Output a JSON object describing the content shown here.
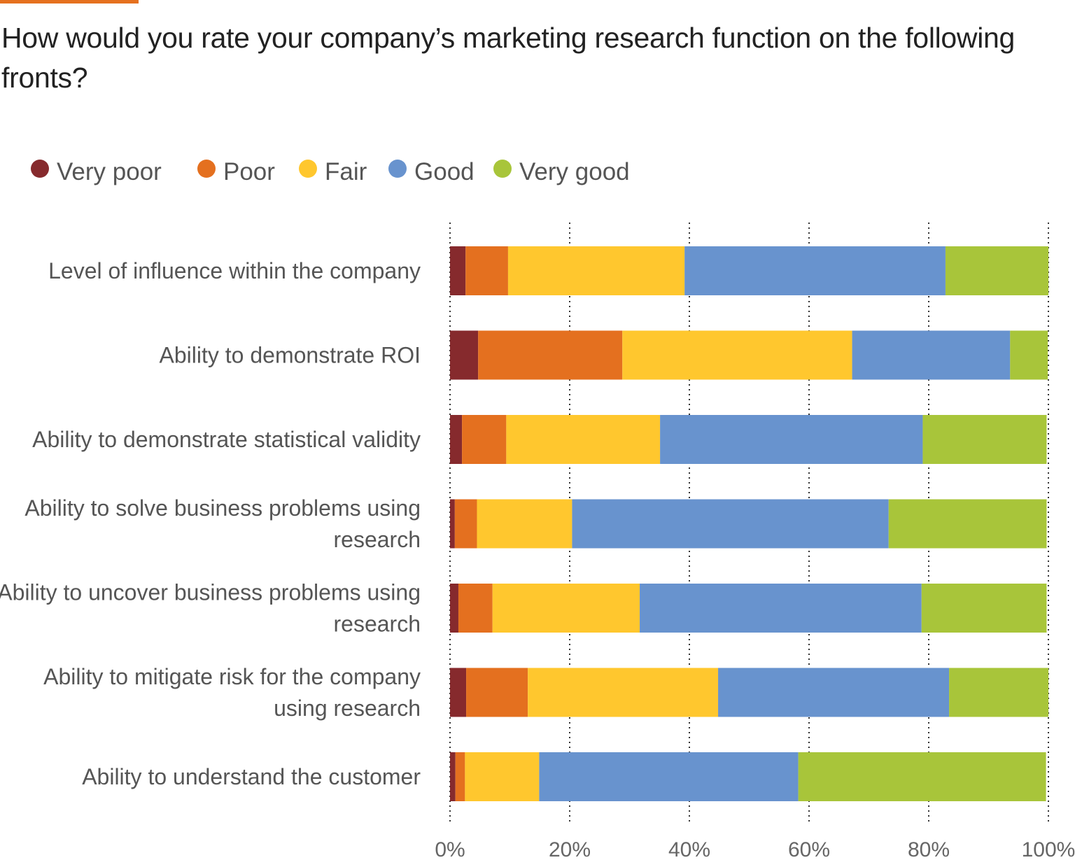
{
  "chart_data": {
    "type": "bar",
    "orientation": "horizontal",
    "stacked": true,
    "title": "How would you rate your company’s marketing research function on the following fronts?",
    "xlabel": "",
    "ylabel": "",
    "xlim": [
      0,
      100
    ],
    "xticks": [
      "0%",
      "20%",
      "40%",
      "60%",
      "80%",
      "100%"
    ],
    "grid": "vertical dotted",
    "legend_position": "top-left",
    "categories": [
      [
        "Level of influence within the company"
      ],
      [
        "Ability to demonstrate ROI"
      ],
      [
        "Ability to demonstrate statistical validity"
      ],
      [
        "Ability to solve business problems using",
        "research"
      ],
      [
        "Ability to uncover business problems using",
        "research"
      ],
      [
        "Ability to mitigate risk for the company",
        "using research"
      ],
      [
        "Ability to understand the customer"
      ]
    ],
    "series": [
      {
        "name": "Very poor",
        "color": "#862A2D",
        "values": [
          2.6,
          4.7,
          2.0,
          0.8,
          1.4,
          2.7,
          0.9
        ]
      },
      {
        "name": "Poor",
        "color": "#E4701F",
        "values": [
          7.1,
          24.1,
          7.4,
          3.7,
          5.7,
          10.3,
          1.6
        ]
      },
      {
        "name": "Fair",
        "color": "#FFC72E",
        "values": [
          29.5,
          38.4,
          25.7,
          15.9,
          24.6,
          31.8,
          12.4
        ]
      },
      {
        "name": "Good",
        "color": "#6893CE",
        "values": [
          43.6,
          26.4,
          43.9,
          52.9,
          47.1,
          38.6,
          43.3
        ]
      },
      {
        "name": "Very good",
        "color": "#A8C53A",
        "values": [
          17.2,
          6.3,
          20.7,
          26.4,
          20.9,
          16.6,
          41.4
        ]
      }
    ]
  }
}
